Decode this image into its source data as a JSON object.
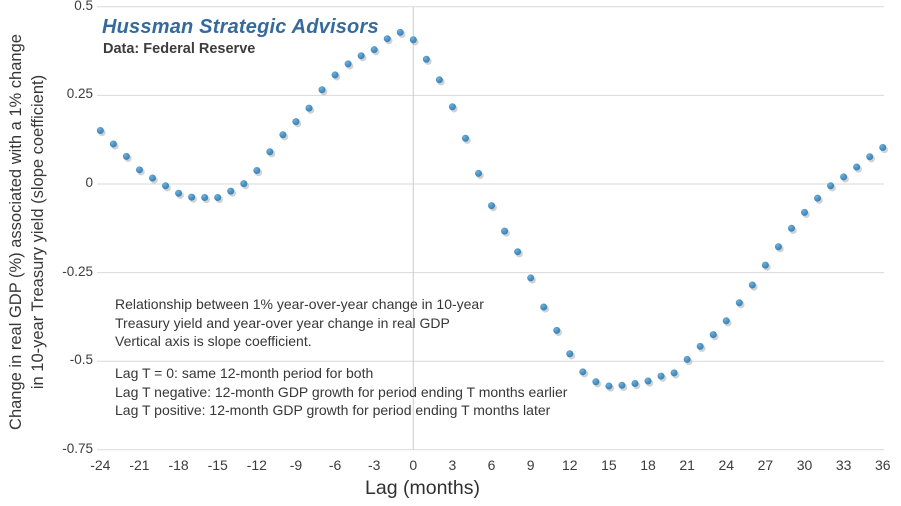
{
  "header": {
    "brand": "Hussman Strategic Advisors",
    "source": "Data: Federal Reserve"
  },
  "annotations": {
    "block1": {
      "lines": [
        "Relationship between 1% year-over-year change in 10-year",
        "Treasury yield and year-over year change in real GDP",
        "Vertical axis is slope coefficient."
      ]
    },
    "block2": {
      "lines": [
        "Lag T = 0: same 12-month period for both",
        "Lag T negative: 12-month GDP growth for period ending T months earlier",
        "Lag T positive: 12-month GDP growth for period ending T months later"
      ]
    }
  },
  "chart_data": {
    "type": "scatter",
    "title": "",
    "xlabel": "Lag (months)",
    "ylabel_line1": "Change in real GDP (%) associated with a 1% change",
    "ylabel_line2": "in 10-year Treasury yield (slope coefficient)",
    "xlim": [
      -24.5,
      36.2
    ],
    "ylim": [
      -0.75,
      0.5
    ],
    "x_ticks": [
      -24,
      -21,
      -18,
      -15,
      -12,
      -9,
      -6,
      -3,
      0,
      3,
      6,
      9,
      12,
      15,
      18,
      21,
      24,
      27,
      30,
      33,
      36
    ],
    "y_ticks": [
      0.5,
      0.25,
      0,
      -0.25,
      -0.5,
      -0.75
    ],
    "grid": true,
    "legend_position": "none",
    "marker_color": "#4a91c3",
    "gridline_color": "#d9dadb",
    "zero_lag_line_color": "#c9ccce",
    "x": [
      -24,
      -23,
      -22,
      -21,
      -20,
      -19,
      -18,
      -17,
      -16,
      -15,
      -14,
      -13,
      -12,
      -11,
      -10,
      -9,
      -8,
      -7,
      -6,
      -5,
      -4,
      -3,
      -2,
      -1,
      0,
      1,
      2,
      3,
      4,
      5,
      6,
      7,
      8,
      9,
      10,
      11,
      12,
      13,
      14,
      15,
      16,
      17,
      18,
      19,
      20,
      21,
      22,
      23,
      24,
      25,
      26,
      27,
      28,
      29,
      30,
      31,
      32,
      33,
      34,
      35,
      36
    ],
    "y": [
      0.151,
      0.113,
      0.078,
      0.04,
      0.017,
      -0.005,
      -0.026,
      -0.037,
      -0.038,
      -0.038,
      -0.02,
      0.001,
      0.038,
      0.091,
      0.139,
      0.176,
      0.214,
      0.266,
      0.308,
      0.339,
      0.362,
      0.379,
      0.41,
      0.428,
      0.407,
      0.352,
      0.294,
      0.218,
      0.129,
      0.03,
      -0.061,
      -0.133,
      -0.191,
      -0.265,
      -0.347,
      -0.413,
      -0.479,
      -0.53,
      -0.558,
      -0.57,
      -0.568,
      -0.563,
      -0.556,
      -0.542,
      -0.533,
      -0.495,
      -0.458,
      -0.425,
      -0.386,
      -0.335,
      -0.285,
      -0.229,
      -0.177,
      -0.125,
      -0.08,
      -0.04,
      -0.005,
      0.02,
      0.048,
      0.077,
      0.103
    ]
  }
}
